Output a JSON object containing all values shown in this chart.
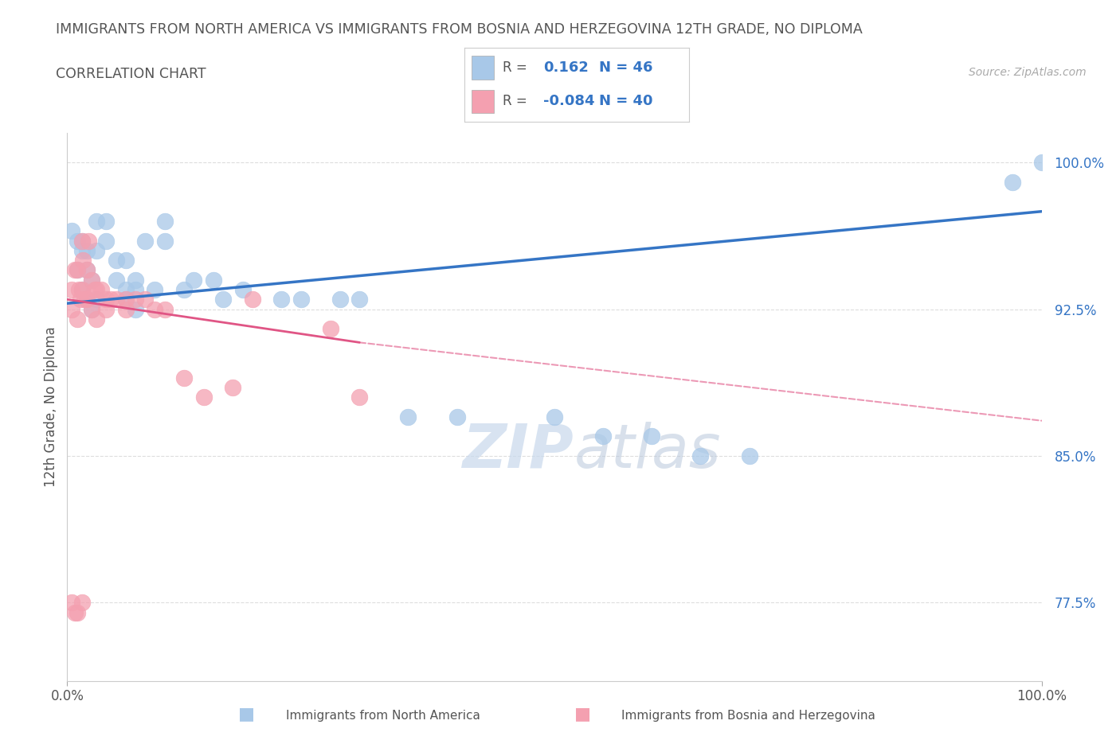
{
  "title_line1": "IMMIGRANTS FROM NORTH AMERICA VS IMMIGRANTS FROM BOSNIA AND HERZEGOVINA 12TH GRADE, NO DIPLOMA",
  "title_line2": "CORRELATION CHART",
  "source": "Source: ZipAtlas.com",
  "ylabel": "12th Grade, No Diploma",
  "xlim": [
    0.0,
    1.0
  ],
  "ylim": [
    0.735,
    1.015
  ],
  "yticks": [
    0.775,
    0.85,
    0.925,
    1.0
  ],
  "ytick_labels": [
    "77.5%",
    "85.0%",
    "92.5%",
    "100.0%"
  ],
  "xticks": [
    0.0,
    1.0
  ],
  "xtick_labels": [
    "0.0%",
    "100.0%"
  ],
  "blue_R": 0.162,
  "blue_N": 46,
  "pink_R": -0.084,
  "pink_N": 40,
  "blue_color": "#a8c8e8",
  "pink_color": "#f4a0b0",
  "blue_line_color": "#3575c5",
  "pink_line_color": "#e05585",
  "legend_text_color": "#3575c5",
  "watermark_color": "#c8d8ec",
  "legend_label_blue": "Immigrants from North America",
  "legend_label_pink": "Immigrants from Bosnia and Herzegovina",
  "blue_line_x0": 0.0,
  "blue_line_y0": 0.928,
  "blue_line_x1": 1.0,
  "blue_line_y1": 0.975,
  "pink_line_x0": 0.0,
  "pink_line_y0": 0.93,
  "pink_line_solid_x1": 0.3,
  "pink_line_solid_y1": 0.908,
  "pink_line_x1": 1.0,
  "pink_line_y1": 0.868,
  "blue_scatter_x": [
    0.005,
    0.01,
    0.01,
    0.015,
    0.015,
    0.015,
    0.02,
    0.02,
    0.02,
    0.025,
    0.025,
    0.03,
    0.03,
    0.03,
    0.04,
    0.04,
    0.05,
    0.05,
    0.06,
    0.06,
    0.06,
    0.07,
    0.07,
    0.07,
    0.08,
    0.09,
    0.1,
    0.1,
    0.12,
    0.13,
    0.15,
    0.16,
    0.18,
    0.22,
    0.24,
    0.28,
    0.3,
    0.35,
    0.4,
    0.5,
    0.55,
    0.6,
    0.65,
    0.7,
    0.97,
    1.0
  ],
  "blue_scatter_y": [
    0.965,
    0.96,
    0.945,
    0.96,
    0.955,
    0.935,
    0.955,
    0.93,
    0.945,
    0.94,
    0.925,
    0.97,
    0.955,
    0.93,
    0.97,
    0.96,
    0.94,
    0.95,
    0.935,
    0.93,
    0.95,
    0.935,
    0.925,
    0.94,
    0.96,
    0.935,
    0.96,
    0.97,
    0.935,
    0.94,
    0.94,
    0.93,
    0.935,
    0.93,
    0.93,
    0.93,
    0.93,
    0.87,
    0.87,
    0.87,
    0.86,
    0.86,
    0.85,
    0.85,
    0.99,
    1.0
  ],
  "pink_scatter_x": [
    0.005,
    0.005,
    0.008,
    0.01,
    0.01,
    0.012,
    0.014,
    0.015,
    0.015,
    0.016,
    0.018,
    0.02,
    0.02,
    0.022,
    0.025,
    0.025,
    0.028,
    0.03,
    0.03,
    0.035,
    0.04,
    0.04,
    0.045,
    0.05,
    0.06,
    0.06,
    0.07,
    0.08,
    0.09,
    0.1,
    0.12,
    0.14,
    0.17,
    0.19,
    0.27,
    0.3,
    0.005,
    0.008,
    0.01,
    0.015
  ],
  "pink_scatter_y": [
    0.935,
    0.925,
    0.945,
    0.945,
    0.92,
    0.935,
    0.93,
    0.96,
    0.935,
    0.95,
    0.93,
    0.945,
    0.93,
    0.96,
    0.94,
    0.925,
    0.935,
    0.935,
    0.92,
    0.935,
    0.93,
    0.925,
    0.93,
    0.93,
    0.93,
    0.925,
    0.93,
    0.93,
    0.925,
    0.925,
    0.89,
    0.88,
    0.885,
    0.93,
    0.915,
    0.88,
    0.775,
    0.77,
    0.77,
    0.775
  ]
}
